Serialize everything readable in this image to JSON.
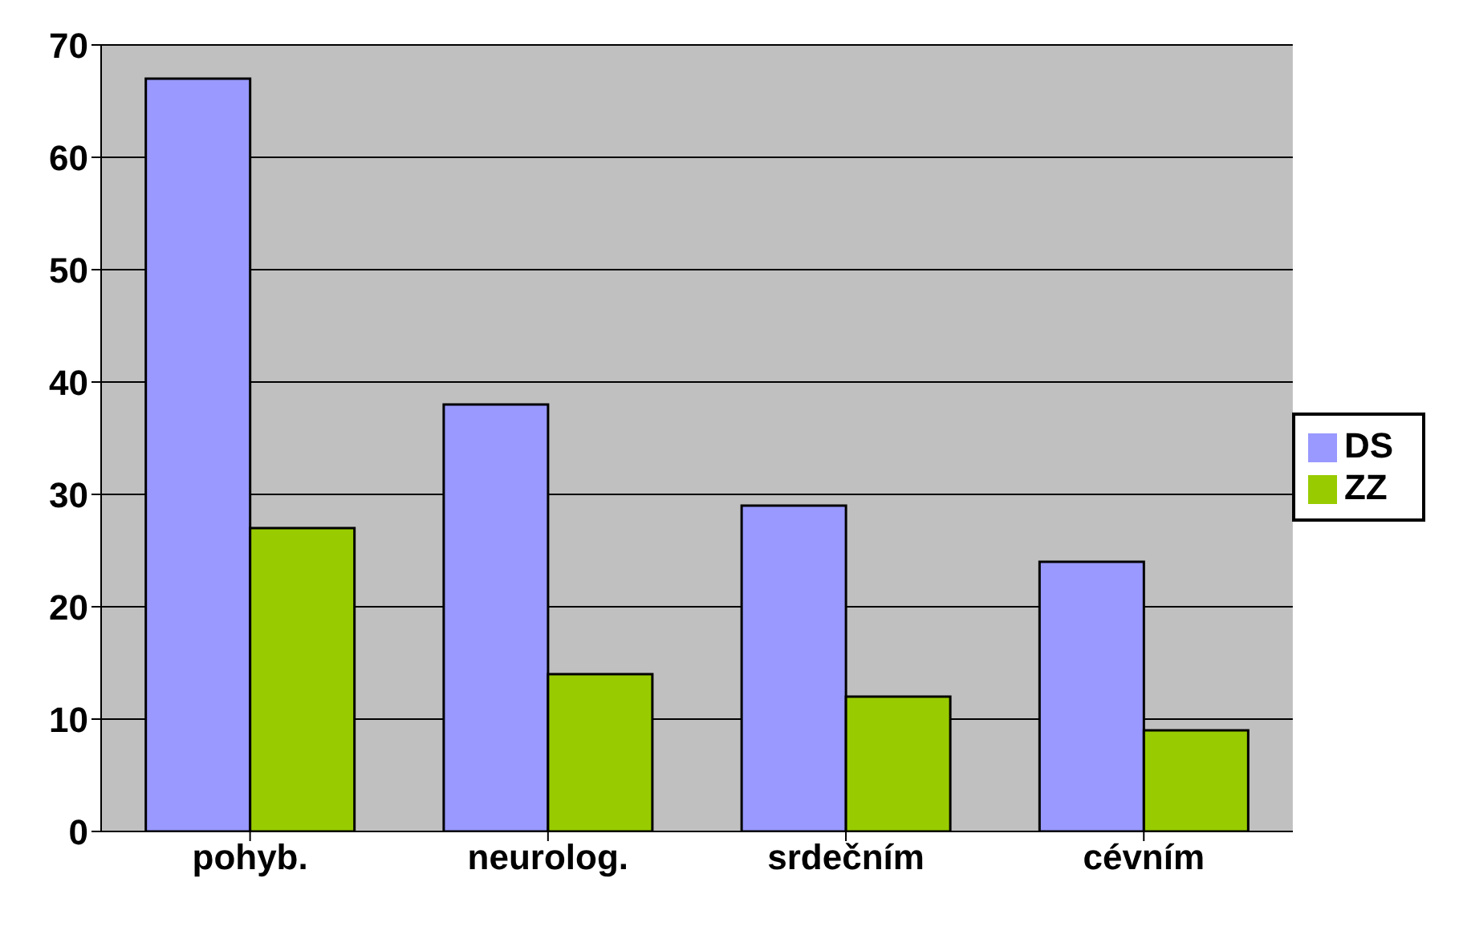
{
  "chart_data": {
    "type": "bar",
    "categories": [
      "pohyb.",
      "neurolog.",
      "srdečním",
      "cévním"
    ],
    "series": [
      {
        "name": "DS",
        "color": "#9999ff",
        "values": [
          67,
          38,
          29,
          24
        ]
      },
      {
        "name": "ZZ",
        "color": "#99cc00",
        "values": [
          27,
          14,
          12,
          9
        ]
      }
    ],
    "ylim": [
      0,
      70
    ],
    "yticks": [
      0,
      10,
      20,
      30,
      40,
      50,
      60,
      70
    ],
    "grid": "y",
    "legend": "right"
  }
}
